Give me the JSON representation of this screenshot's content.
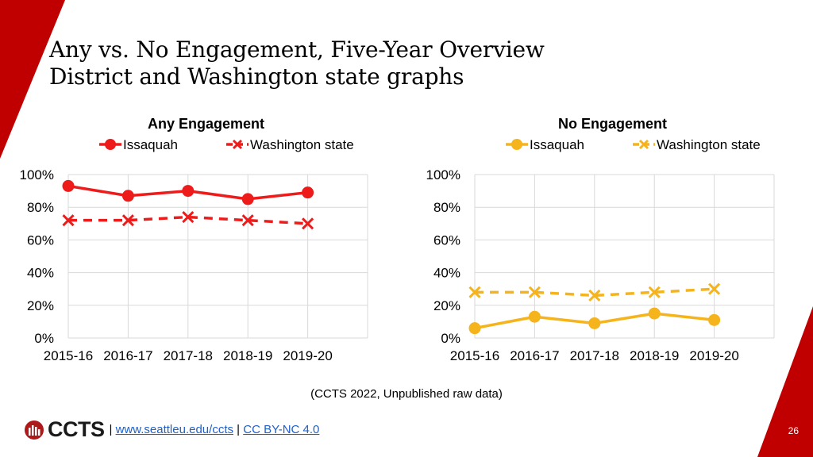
{
  "slide": {
    "title_line1": "Any vs. No Engagement, Five-Year Overview",
    "title_line2": "District and Washington state graphs",
    "source": "(CCTS 2022, Unpublished raw data)",
    "logo_text": "CCTS",
    "separator": "|",
    "link_site": "www.seattleu.edu/ccts",
    "link_license": "CC BY-NC 4.0",
    "page_number": "26"
  },
  "colors": {
    "accent_red": "#c00000",
    "any_series": "#ee1b1b",
    "no_series": "#f5b41c",
    "grid": "#d9d9d9"
  },
  "chart_data": [
    {
      "type": "line",
      "title": "Any Engagement",
      "categories": [
        "2015-16",
        "2016-17",
        "2017-18",
        "2018-19",
        "2019-20"
      ],
      "ylim": [
        0,
        100
      ],
      "yticks": [
        0,
        20,
        40,
        60,
        80,
        100
      ],
      "ytick_labels": [
        "0%",
        "20%",
        "40%",
        "60%",
        "80%",
        "100%"
      ],
      "legend": "top",
      "series": [
        {
          "name": "Issaquah",
          "marker": "circle",
          "dash": "solid",
          "values": [
            93,
            87,
            90,
            85,
            89
          ]
        },
        {
          "name": "Washington state",
          "marker": "x",
          "dash": "dashed",
          "values": [
            72,
            72,
            74,
            72,
            70
          ]
        }
      ]
    },
    {
      "type": "line",
      "title": "No Engagement",
      "categories": [
        "2015-16",
        "2016-17",
        "2017-18",
        "2018-19",
        "2019-20"
      ],
      "ylim": [
        0,
        100
      ],
      "yticks": [
        0,
        20,
        40,
        60,
        80,
        100
      ],
      "ytick_labels": [
        "0%",
        "20%",
        "40%",
        "60%",
        "80%",
        "100%"
      ],
      "legend": "top",
      "series": [
        {
          "name": "Issaquah",
          "marker": "circle",
          "dash": "solid",
          "values": [
            6,
            13,
            9,
            15,
            11
          ]
        },
        {
          "name": "Washington state",
          "marker": "x",
          "dash": "dashed",
          "values": [
            28,
            28,
            26,
            28,
            30
          ]
        }
      ]
    }
  ]
}
